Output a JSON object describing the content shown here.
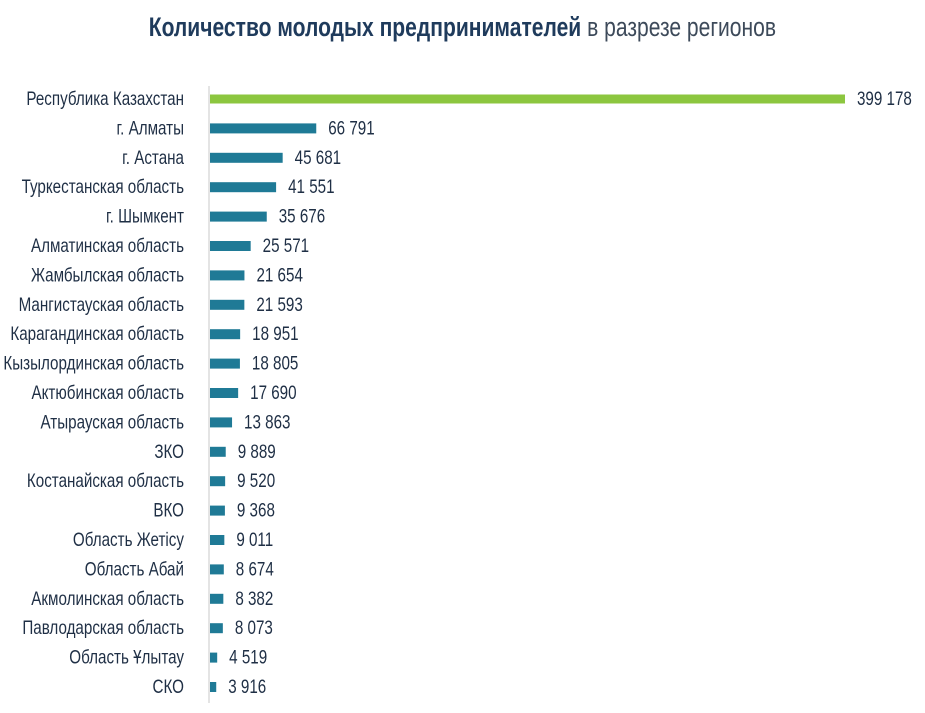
{
  "chart_data": {
    "type": "bar",
    "orientation": "horizontal",
    "title_bold": "Количество молодых предпринимателей",
    "title_rest": " в разрезе регионов",
    "xlabel": "",
    "ylabel": "",
    "colors": {
      "total": "#8cc63f",
      "regions": "#1f7a96",
      "text": "#1f2f45",
      "title": "#1f3b5c",
      "axis": "#c8c8c8"
    },
    "categories": [
      "Республика Казахстан",
      "г. Алматы",
      "г. Астана",
      "Туркестанская область",
      "г. Шымкент",
      "Алматинская область",
      "Жамбылская область",
      "Мангистауская область",
      "Карагандинская область",
      "Кызылординская область",
      "Актюбинская область",
      "Атырауская область",
      "ЗКО",
      "Костанайская область",
      "ВКО",
      "Область Жетісу",
      "Область Абай",
      "Акмолинская область",
      "Павлодарская область",
      "Область Ұлытау",
      "СКО"
    ],
    "values": [
      399178,
      66791,
      45681,
      41551,
      35676,
      25571,
      21654,
      21593,
      18951,
      18805,
      17690,
      13863,
      9889,
      9520,
      9368,
      9011,
      8674,
      8382,
      8073,
      4519,
      3916
    ],
    "value_labels": [
      "399 178",
      "66 791",
      "45 681",
      "41 551",
      "35 676",
      "25 571",
      "21 654",
      "21 593",
      "18 951",
      "18 805",
      "17 690",
      "13 863",
      "9 889",
      "9 520",
      "9 368",
      "9 011",
      "8 674",
      "8 382",
      "8 073",
      "4 519",
      "3 916"
    ],
    "xlim": [
      0,
      399178
    ]
  }
}
